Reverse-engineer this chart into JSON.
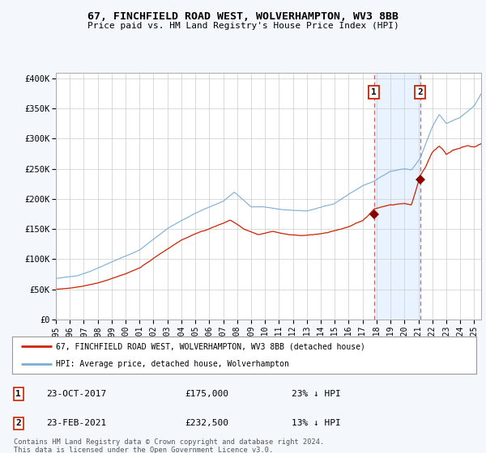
{
  "title": "67, FINCHFIELD ROAD WEST, WOLVERHAMPTON, WV3 8BB",
  "subtitle": "Price paid vs. HM Land Registry's House Price Index (HPI)",
  "ylabel_ticks": [
    "£0",
    "£50K",
    "£100K",
    "£150K",
    "£200K",
    "£250K",
    "£300K",
    "£350K",
    "£400K"
  ],
  "ytick_values": [
    0,
    50000,
    100000,
    150000,
    200000,
    250000,
    300000,
    350000,
    400000
  ],
  "ylim": [
    0,
    410000
  ],
  "xlim_start": 1995.0,
  "xlim_end": 2025.5,
  "hpi_color": "#7aadd4",
  "price_color": "#cc2200",
  "bg_color": "#f0f4ff",
  "plot_bg": "#ffffff",
  "grid_color": "#cccccc",
  "transaction1_date": 2017.81,
  "transaction1_price": 175000,
  "transaction2_date": 2021.13,
  "transaction2_price": 232500,
  "transaction1_label": "1",
  "transaction2_label": "2",
  "legend_line1": "67, FINCHFIELD ROAD WEST, WOLVERHAMPTON, WV3 8BB (detached house)",
  "legend_line2": "HPI: Average price, detached house, Wolverhampton",
  "table_row1": [
    "1",
    "23-OCT-2017",
    "£175,000",
    "23% ↓ HPI"
  ],
  "table_row2": [
    "2",
    "23-FEB-2021",
    "£232,500",
    "13% ↓ HPI"
  ],
  "footnote": "Contains HM Land Registry data © Crown copyright and database right 2024.\nThis data is licensed under the Open Government Licence v3.0.",
  "marker_color": "#880000",
  "shade_color": "#ddeeff",
  "vline_color": "#cc6666",
  "legend_border": "#999999",
  "spine_color": "#aaaaaa"
}
